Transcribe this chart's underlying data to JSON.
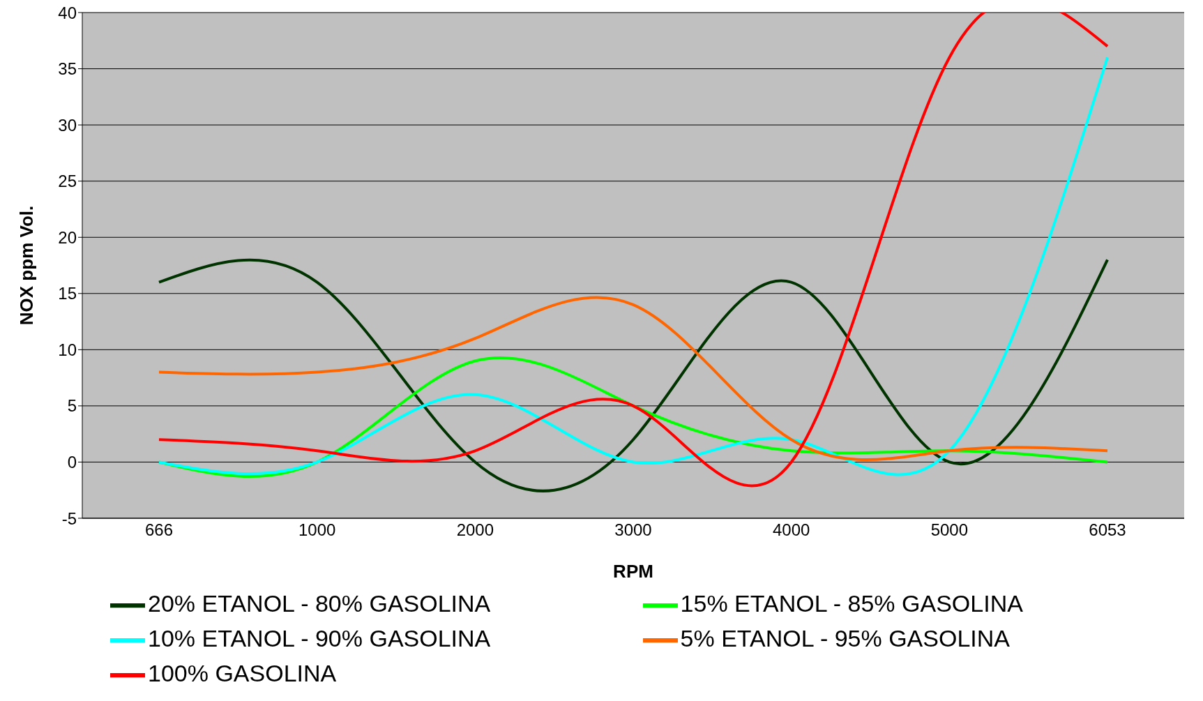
{
  "chart_data": {
    "type": "line",
    "xlabel": "RPM",
    "ylabel": "NOX ppm Vol.",
    "categories": [
      "666",
      "1000",
      "2000",
      "3000",
      "4000",
      "5000",
      "6053"
    ],
    "ylim": [
      -5,
      40
    ],
    "yticks": [
      -5,
      0,
      5,
      10,
      15,
      20,
      25,
      30,
      35,
      40
    ],
    "grid": "y",
    "legend": "bottom",
    "marker": "none",
    "line_style": "solid",
    "series": [
      {
        "name": "20% ETANOL - 80% GASOLINA",
        "color": "#003300",
        "values": [
          16,
          16,
          0,
          2,
          16,
          0,
          18
        ]
      },
      {
        "name": "15% ETANOL - 85% GASOLINA",
        "color": "#00ff00",
        "values": [
          0,
          0,
          9,
          5,
          1,
          1,
          0
        ]
      },
      {
        "name": "10% ETANOL - 90% GASOLINA",
        "color": "#00ffff",
        "values": [
          0,
          0,
          6,
          0,
          2,
          1,
          36
        ]
      },
      {
        "name": "5% ETANOL - 95% GASOLINA",
        "color": "#ff6600",
        "values": [
          8,
          8,
          11,
          14,
          2,
          1,
          1
        ]
      },
      {
        "name": "100% GASOLINA",
        "color": "#ff0000",
        "values": [
          2,
          1,
          1,
          5,
          0,
          36,
          37
        ]
      }
    ]
  }
}
